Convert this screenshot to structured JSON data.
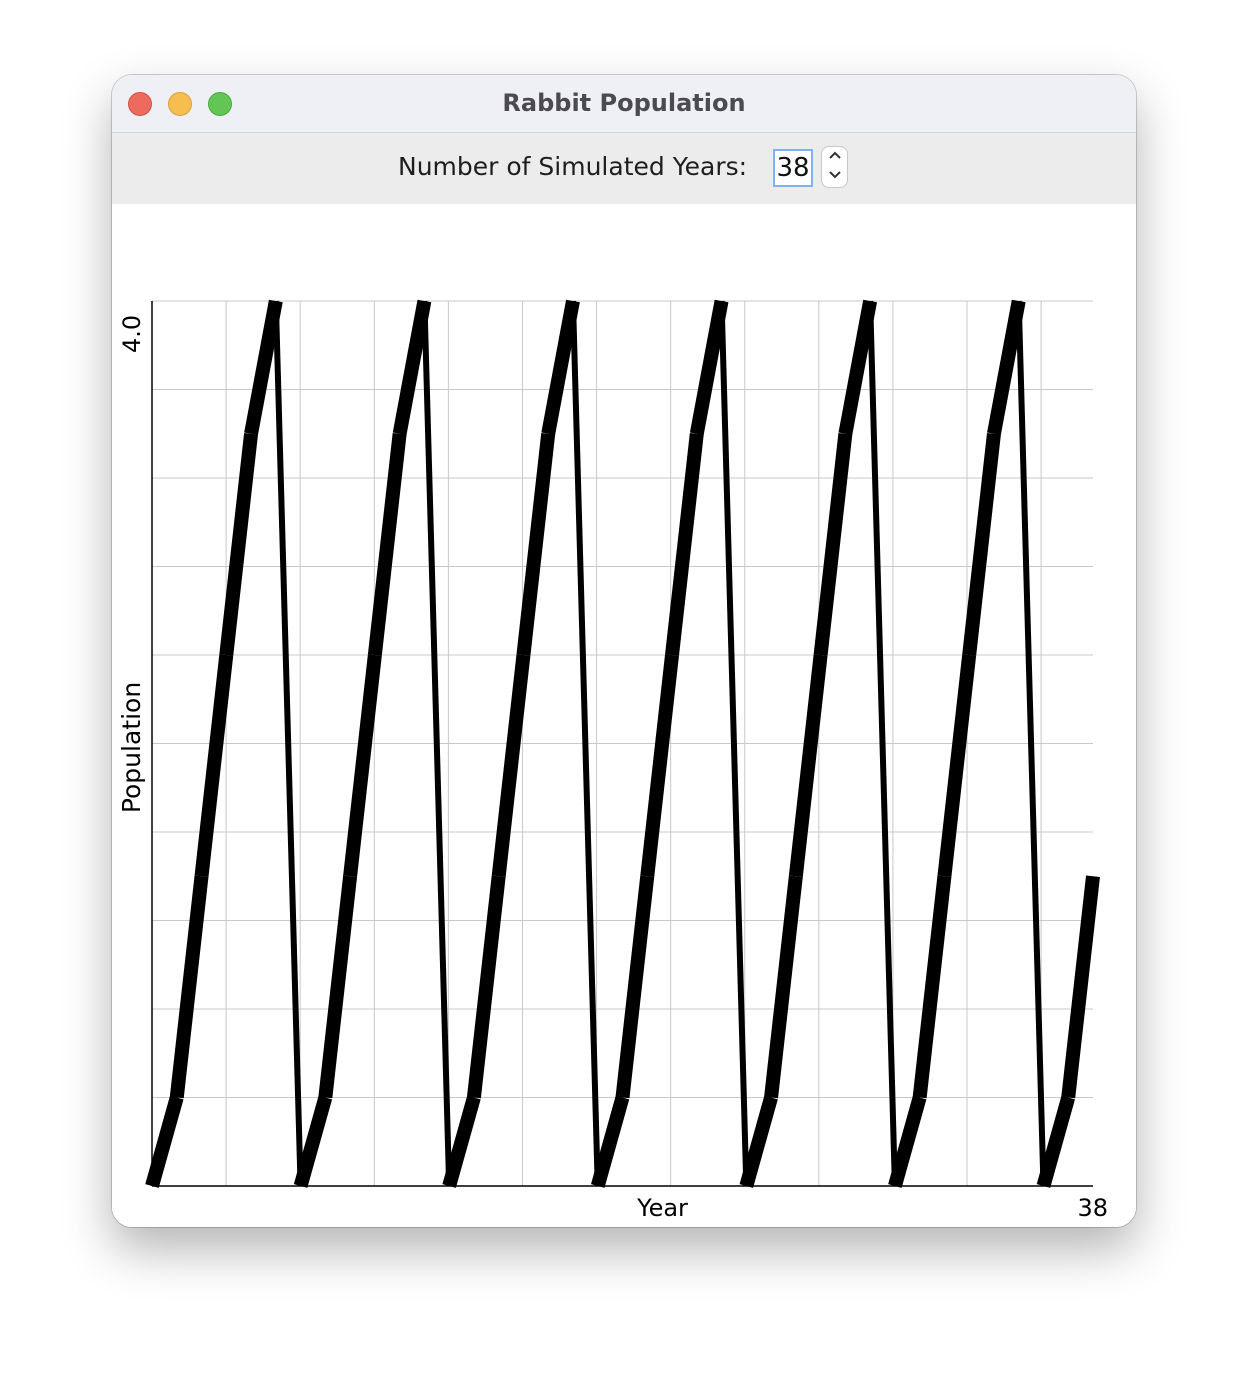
{
  "window": {
    "title": "Rabbit Population"
  },
  "controls": {
    "years_label": "Number of Simulated Years:",
    "years_value": "38"
  },
  "icons": {
    "spinner_up": "chevron-up-icon",
    "spinner_down": "chevron-down-icon"
  },
  "colors": {
    "close": "#ed6a5e",
    "minimize": "#f5be4f",
    "zoom": "#62c554",
    "input_focus": "#7fb2ef",
    "series": "#000000",
    "grid": "#c8c8c8"
  },
  "chart_data": {
    "type": "line",
    "title": "",
    "xlabel": "Year",
    "ylabel": "Population",
    "x_tick_label": "38",
    "y_tick_label": "4.0",
    "xlim": [
      0,
      38
    ],
    "ylim": [
      0,
      4.0
    ],
    "grid": true,
    "x": [
      0,
      1,
      2,
      3,
      4,
      5,
      6,
      7,
      8,
      9,
      10,
      11,
      12,
      13,
      14,
      15,
      16,
      17,
      18,
      19,
      20,
      21,
      22,
      23,
      24,
      25,
      26,
      27,
      28,
      29,
      30,
      31,
      32,
      33,
      34,
      35,
      36,
      37,
      38
    ],
    "series": [
      {
        "values": [
          0.0,
          0.4,
          1.4,
          2.4,
          3.4,
          4.0,
          0.0,
          0.4,
          1.4,
          2.4,
          3.4,
          4.0,
          0.0,
          0.4,
          1.4,
          2.4,
          3.4,
          4.0,
          0.0,
          0.4,
          1.4,
          2.4,
          3.4,
          4.0,
          0.0,
          0.4,
          1.4,
          2.4,
          3.4,
          4.0,
          0.0,
          0.4,
          1.4,
          2.4,
          3.4,
          4.0,
          0.0,
          0.4,
          1.4
        ]
      }
    ]
  }
}
